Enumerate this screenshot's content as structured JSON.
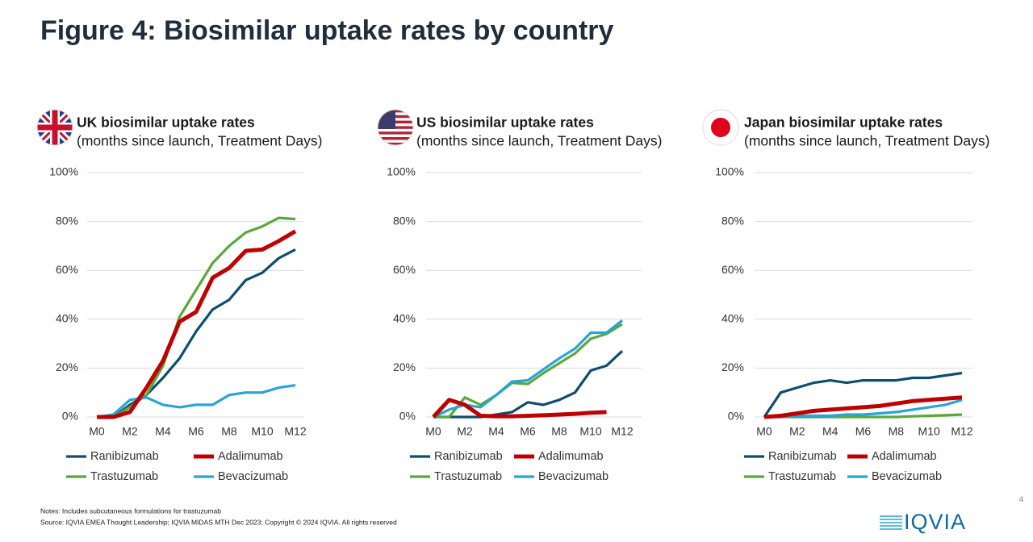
{
  "title": "Figure 4: Biosimilar uptake rates by country",
  "chart_data": [
    {
      "type": "line",
      "title": "UK biosimilar uptake rates",
      "subtitle": "(months since launch, Treatment Days)",
      "categories": [
        "M0",
        null,
        "M2",
        null,
        "M4",
        null,
        "M6",
        null,
        "M8",
        null,
        "M10",
        null,
        "M12"
      ],
      "ylim": [
        0,
        100
      ],
      "yticks": [
        {
          "value": 0,
          "label": "0%"
        },
        {
          "value": 20,
          "label": "20%"
        },
        {
          "value": 40,
          "label": "40%"
        },
        {
          "value": 60,
          "label": "60%"
        },
        {
          "value": 80,
          "label": "80%"
        },
        {
          "value": 100,
          "label": "100%"
        }
      ],
      "grid": true,
      "legend": "bottom",
      "series": [
        {
          "name": "Ranibizumab",
          "color": "#0d4d6e",
          "values": [
            0,
            0,
            5,
            9,
            16,
            24,
            35,
            44,
            48,
            56,
            59,
            65,
            68.5
          ]
        },
        {
          "name": "Adalimumab",
          "color": "#c00000",
          "values": [
            0,
            0,
            2,
            12,
            23,
            39,
            43,
            57,
            61,
            68,
            68.5,
            72,
            76
          ]
        },
        {
          "name": "Trastuzumab",
          "color": "#5aa83c",
          "values": [
            0,
            0,
            4,
            9,
            21,
            41,
            52,
            63,
            70,
            75.5,
            78,
            81.5,
            81
          ]
        },
        {
          "name": "Bevacizumab",
          "color": "#27a4d8",
          "values": [
            0,
            1,
            7,
            8,
            5,
            4,
            5,
            5,
            9,
            10,
            10,
            12,
            13
          ]
        }
      ]
    },
    {
      "type": "line",
      "title": "US biosimilar uptake rates",
      "subtitle": "(months since launch, Treatment Days)",
      "categories": [
        "M0",
        null,
        "M2",
        null,
        "M4",
        null,
        "M6",
        null,
        "M8",
        null,
        "M10",
        null,
        "M12"
      ],
      "ylim": [
        0,
        100
      ],
      "yticks": [
        {
          "value": 0,
          "label": "0%"
        },
        {
          "value": 20,
          "label": "20%"
        },
        {
          "value": 40,
          "label": "40%"
        },
        {
          "value": 60,
          "label": "60%"
        },
        {
          "value": 80,
          "label": "80%"
        },
        {
          "value": 100,
          "label": "100%"
        }
      ],
      "grid": true,
      "legend": "bottom",
      "series": [
        {
          "name": "Ranibizumab",
          "color": "#0d4d6e",
          "values": [
            0,
            0,
            0,
            0,
            1,
            2,
            6,
            5,
            7,
            10,
            19,
            21,
            27
          ]
        },
        {
          "name": "Adalimumab",
          "color": "#c00000",
          "values": [
            0,
            7,
            5,
            0.5,
            0.3,
            0.3,
            0.5,
            0.7,
            1,
            1.3,
            1.7,
            2,
            null
          ]
        },
        {
          "name": "Trastuzumab",
          "color": "#5aa83c",
          "values": [
            0,
            0,
            8,
            5,
            9,
            14,
            13.5,
            18,
            22,
            26,
            32,
            34,
            38
          ]
        },
        {
          "name": "Bevacizumab",
          "color": "#27a4d8",
          "values": [
            0,
            3,
            5,
            4,
            9,
            14.5,
            15,
            19.5,
            24,
            28,
            34.5,
            34.5,
            39.5
          ]
        }
      ]
    },
    {
      "type": "line",
      "title": "Japan biosimilar uptake rates",
      "subtitle": "(months since launch, Treatment Days)",
      "categories": [
        "M0",
        null,
        "M2",
        null,
        "M4",
        null,
        "M6",
        null,
        "M8",
        null,
        "M10",
        null,
        "M12"
      ],
      "ylim": [
        0,
        100
      ],
      "yticks": [
        {
          "value": 0,
          "label": "0%"
        },
        {
          "value": 20,
          "label": "20%"
        },
        {
          "value": 40,
          "label": "40%"
        },
        {
          "value": 60,
          "label": "60%"
        },
        {
          "value": 80,
          "label": "80%"
        },
        {
          "value": 100,
          "label": "100%"
        }
      ],
      "grid": true,
      "legend": "bottom",
      "series": [
        {
          "name": "Ranibizumab",
          "color": "#0d4d6e",
          "values": [
            0,
            10,
            12,
            14,
            15,
            14,
            15,
            15,
            15,
            16,
            16,
            17,
            18
          ]
        },
        {
          "name": "Adalimumab",
          "color": "#c00000",
          "values": [
            0,
            0.5,
            1.5,
            2.5,
            3,
            3.5,
            4,
            4.5,
            5.5,
            6.5,
            7,
            7.5,
            8
          ]
        },
        {
          "name": "Trastuzumab",
          "color": "#5aa83c",
          "values": [
            0,
            0,
            0,
            0,
            0,
            0,
            0,
            0,
            0,
            0.3,
            0.5,
            0.7,
            1
          ]
        },
        {
          "name": "Bevacizumab",
          "color": "#27a4d8",
          "values": [
            0,
            0,
            0.5,
            0.5,
            0.5,
            1,
            1,
            1.5,
            2,
            3,
            4,
            5,
            7
          ]
        }
      ]
    }
  ],
  "notes": "Notes: Includes subcutaneous formulations for trastuzumab",
  "source": "Source: IQVIA EMEA Thought Leadership; IQVIA MIDAS MTH Dec 2023; Copyright © 2024 IQVIA. All rights reserved",
  "logo": "IQVIA",
  "page_number": "4"
}
